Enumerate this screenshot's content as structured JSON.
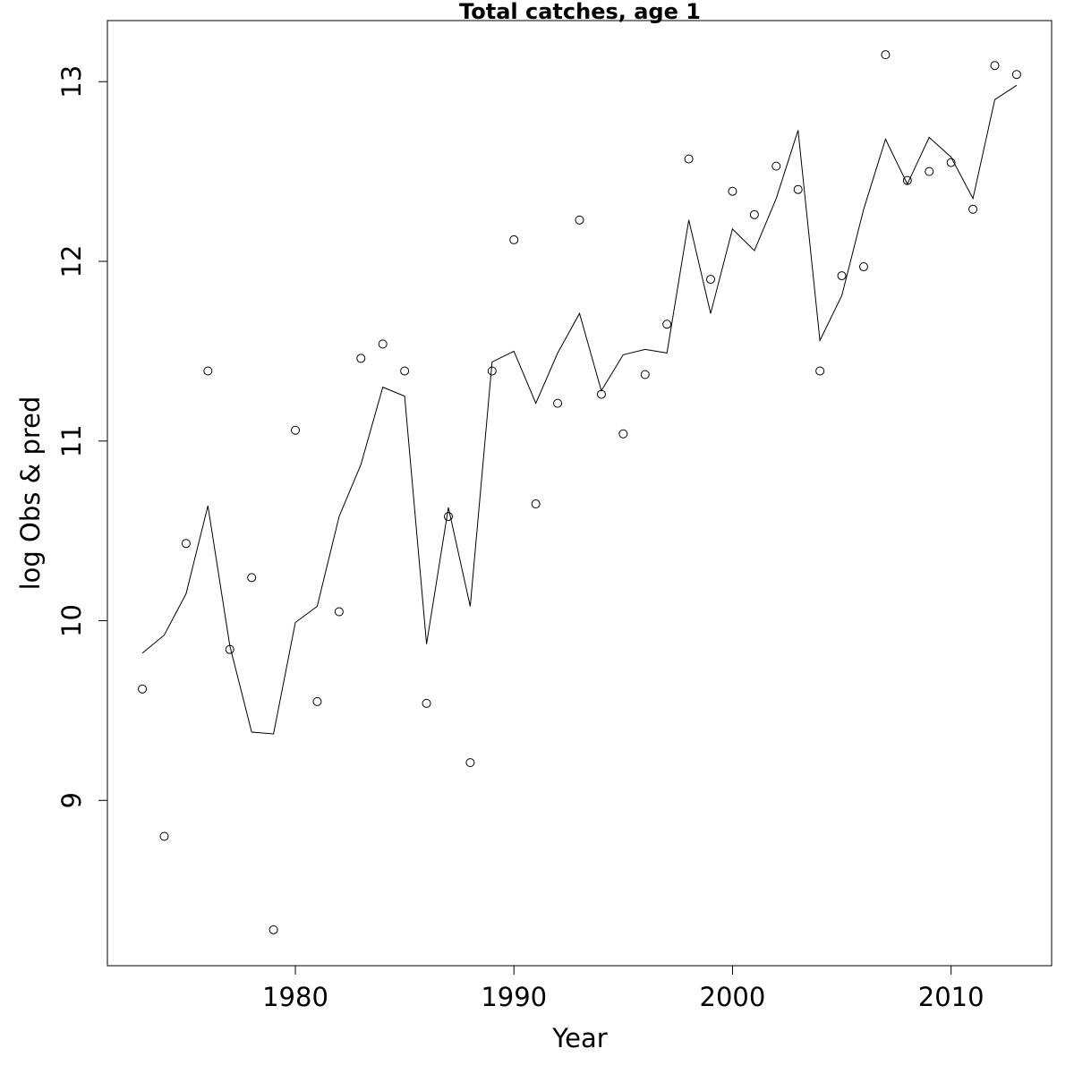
{
  "chart_data": {
    "type": "scatter",
    "title": "Total catches, age 1",
    "xlabel": "Year",
    "ylabel": "log Obs & pred",
    "xlim": [
      1971.4,
      2014.6
    ],
    "ylim": [
      8.08,
      13.34
    ],
    "x_ticks": [
      1980,
      1990,
      2000,
      2010
    ],
    "y_ticks": [
      9,
      10,
      11,
      12,
      13
    ],
    "grid": false,
    "series": [
      {
        "style": "points",
        "x": [
          1973,
          1974,
          1975,
          1976,
          1977,
          1978,
          1979,
          1980,
          1981,
          1982,
          1983,
          1984,
          1985,
          1986,
          1987,
          1988,
          1989,
          1990,
          1991,
          1992,
          1993,
          1994,
          1995,
          1996,
          1997,
          1998,
          1999,
          2000,
          2001,
          2002,
          2003,
          2004,
          2005,
          2006,
          2007,
          2008,
          2009,
          2010,
          2011,
          2012,
          2013
        ],
        "y": [
          9.62,
          8.8,
          10.43,
          11.39,
          9.84,
          10.24,
          8.28,
          11.06,
          9.55,
          10.05,
          11.46,
          11.54,
          11.39,
          9.54,
          10.58,
          9.21,
          11.39,
          12.12,
          10.65,
          11.21,
          12.23,
          11.26,
          11.04,
          11.37,
          11.65,
          12.57,
          11.9,
          12.39,
          12.26,
          12.53,
          12.4,
          11.39,
          11.92,
          11.97,
          13.15,
          12.45,
          12.5,
          12.55,
          12.29,
          13.09,
          13.04
        ]
      },
      {
        "style": "line",
        "x": [
          1973,
          1974,
          1975,
          1976,
          1977,
          1978,
          1979,
          1980,
          1981,
          1982,
          1983,
          1984,
          1985,
          1986,
          1987,
          1988,
          1989,
          1990,
          1991,
          1992,
          1993,
          1994,
          1995,
          1996,
          1997,
          1998,
          1999,
          2000,
          2001,
          2002,
          2003,
          2004,
          2005,
          2006,
          2007,
          2008,
          2009,
          2010,
          2011,
          2012,
          2013
        ],
        "y": [
          9.82,
          9.92,
          10.15,
          10.64,
          9.86,
          9.38,
          9.37,
          9.99,
          10.08,
          10.58,
          10.87,
          11.3,
          11.25,
          9.87,
          10.63,
          10.08,
          11.44,
          11.5,
          11.21,
          11.49,
          11.71,
          11.28,
          11.48,
          11.51,
          11.49,
          12.23,
          11.71,
          12.18,
          12.06,
          12.35,
          12.73,
          11.56,
          11.81,
          12.29,
          12.68,
          12.43,
          12.69,
          12.58,
          12.35,
          12.9,
          12.98
        ]
      }
    ]
  }
}
